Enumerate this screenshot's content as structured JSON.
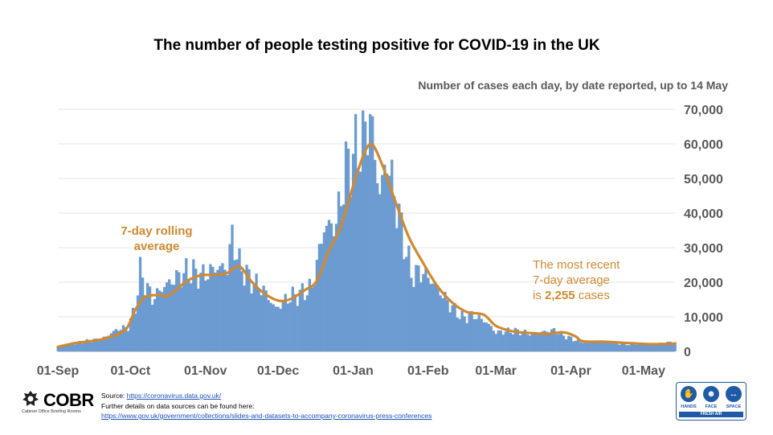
{
  "chart_data": {
    "type": "bar",
    "title": "The number of people testing positive for COVID-19 in the UK",
    "subtitle": "Number of cases each day, by date reported, up to 14 May",
    "x_start": "2020-09-01",
    "x_end": "2021-05-14",
    "xtick_labels": [
      "01-Sep",
      "01-Oct",
      "01-Nov",
      "01-Dec",
      "01-Jan",
      "01-Feb",
      "01-Mar",
      "01-Apr",
      "01-May"
    ],
    "ylim": [
      0,
      70000
    ],
    "ytick_values": [
      0,
      10000,
      20000,
      30000,
      40000,
      50000,
      60000,
      70000
    ],
    "ytick_labels": [
      "0",
      "10,000",
      "20,000",
      "30,000",
      "40,000",
      "50,000",
      "60,000",
      "70,000"
    ],
    "y_axis_position": "right",
    "grid": true,
    "series": [
      {
        "name": "Number of cases each day",
        "style": "bar",
        "color": "#6b9bd1",
        "points": [
          [
            "2020-09-01",
            1300
          ],
          [
            "2020-09-05",
            1800
          ],
          [
            "2020-09-10",
            2700
          ],
          [
            "2020-09-15",
            3100
          ],
          [
            "2020-09-20",
            3900
          ],
          [
            "2020-09-25",
            6200
          ],
          [
            "2020-09-30",
            7100
          ],
          [
            "2020-10-03",
            12800
          ],
          [
            "2020-10-05",
            22900
          ],
          [
            "2020-10-10",
            15200
          ],
          [
            "2020-10-15",
            18900
          ],
          [
            "2020-10-20",
            21300
          ],
          [
            "2020-10-25",
            23200
          ],
          [
            "2020-10-31",
            21900
          ],
          [
            "2020-11-05",
            24100
          ],
          [
            "2020-11-10",
            24300
          ],
          [
            "2020-11-12",
            33500
          ],
          [
            "2020-11-15",
            25100
          ],
          [
            "2020-11-20",
            20300
          ],
          [
            "2020-11-25",
            17800
          ],
          [
            "2020-11-30",
            12300
          ],
          [
            "2020-12-05",
            15500
          ],
          [
            "2020-12-10",
            16600
          ],
          [
            "2020-12-15",
            18400
          ],
          [
            "2020-12-20",
            35900
          ],
          [
            "2020-12-25",
            36800
          ],
          [
            "2020-12-29",
            53100
          ],
          [
            "2021-01-02",
            57700
          ],
          [
            "2021-01-05",
            60900
          ],
          [
            "2021-01-08",
            68000
          ],
          [
            "2021-01-12",
            45500
          ],
          [
            "2021-01-15",
            55800
          ],
          [
            "2021-01-20",
            38900
          ],
          [
            "2021-01-25",
            22200
          ],
          [
            "2021-01-30",
            23000
          ],
          [
            "2021-02-05",
            18200
          ],
          [
            "2021-02-10",
            13500
          ],
          [
            "2021-02-15",
            9800
          ],
          [
            "2021-02-20",
            10400
          ],
          [
            "2021-02-25",
            8500
          ],
          [
            "2021-03-01",
            5500
          ],
          [
            "2021-03-05",
            5800
          ],
          [
            "2021-03-10",
            5900
          ],
          [
            "2021-03-15",
            5100
          ],
          [
            "2021-03-20",
            5600
          ],
          [
            "2021-03-25",
            6100
          ],
          [
            "2021-03-30",
            4300
          ],
          [
            "2021-04-05",
            2700
          ],
          [
            "2021-04-10",
            3100
          ],
          [
            "2021-04-15",
            2700
          ],
          [
            "2021-04-20",
            2500
          ],
          [
            "2021-04-25",
            2000
          ],
          [
            "2021-04-30",
            2300
          ],
          [
            "2021-05-05",
            2000
          ],
          [
            "2021-05-10",
            2400
          ],
          [
            "2021-05-14",
            2700
          ]
        ]
      },
      {
        "name": "7-day rolling average",
        "style": "line",
        "color": "#d18930",
        "points": [
          [
            "2020-09-01",
            1300
          ],
          [
            "2020-09-08",
            2400
          ],
          [
            "2020-09-15",
            3000
          ],
          [
            "2020-09-22",
            4000
          ],
          [
            "2020-09-29",
            6300
          ],
          [
            "2020-10-03",
            12000
          ],
          [
            "2020-10-07",
            15700
          ],
          [
            "2020-10-13",
            16300
          ],
          [
            "2020-10-17",
            16200
          ],
          [
            "2020-10-24",
            20200
          ],
          [
            "2020-10-30",
            22000
          ],
          [
            "2020-11-05",
            22100
          ],
          [
            "2020-11-10",
            22700
          ],
          [
            "2020-11-15",
            24600
          ],
          [
            "2020-11-20",
            20200
          ],
          [
            "2020-11-25",
            16900
          ],
          [
            "2020-12-01",
            14700
          ],
          [
            "2020-12-06",
            15100
          ],
          [
            "2020-12-12",
            17700
          ],
          [
            "2020-12-17",
            20400
          ],
          [
            "2020-12-22",
            29100
          ],
          [
            "2020-12-27",
            36200
          ],
          [
            "2021-01-02",
            50100
          ],
          [
            "2021-01-06",
            57900
          ],
          [
            "2021-01-09",
            59800
          ],
          [
            "2021-01-13",
            54000
          ],
          [
            "2021-01-18",
            44300
          ],
          [
            "2021-01-24",
            33100
          ],
          [
            "2021-01-30",
            25500
          ],
          [
            "2021-02-05",
            18700
          ],
          [
            "2021-02-11",
            14100
          ],
          [
            "2021-02-17",
            11400
          ],
          [
            "2021-02-24",
            10600
          ],
          [
            "2021-03-01",
            7400
          ],
          [
            "2021-03-08",
            5800
          ],
          [
            "2021-03-15",
            5300
          ],
          [
            "2021-03-22",
            5100
          ],
          [
            "2021-03-29",
            5500
          ],
          [
            "2021-04-03",
            4300
          ],
          [
            "2021-04-06",
            2900
          ],
          [
            "2021-04-15",
            2800
          ],
          [
            "2021-04-25",
            2400
          ],
          [
            "2021-05-05",
            2100
          ],
          [
            "2021-05-14",
            2255
          ]
        ]
      }
    ],
    "annotations": [
      {
        "id": "avg-label",
        "lines": [
          "7-day rolling",
          "average"
        ],
        "color": "#d18930"
      },
      {
        "id": "recent-label",
        "lines": [
          "The most recent",
          "7-day average"
        ],
        "last_line_prefix": "is ",
        "last_line_value": "2,255",
        "last_line_suffix": " cases",
        "color": "#d18930"
      }
    ]
  },
  "branding": {
    "cobr_name": "COBR",
    "cobr_subtitle": "Cabinet Office Briefing Rooms",
    "hands_face_space": {
      "labels": [
        "HANDS",
        "FACE",
        "SPACE"
      ],
      "banner": "FRESH AIR"
    }
  },
  "sources": {
    "source_prefix": "Source: ",
    "source_url": "https://coronavirus.data.gov.uk/",
    "details_text": "Further details on data sources can be found here:",
    "details_url": "https://www.gov.uk/government/collections/slides-and-datasets-to-accompany-coronavirus-press-conferences"
  },
  "colors": {
    "bars": "#6b9bd1",
    "line": "#d18930",
    "axis_text": "#595959",
    "brand_blue": "#1f5aa6"
  }
}
